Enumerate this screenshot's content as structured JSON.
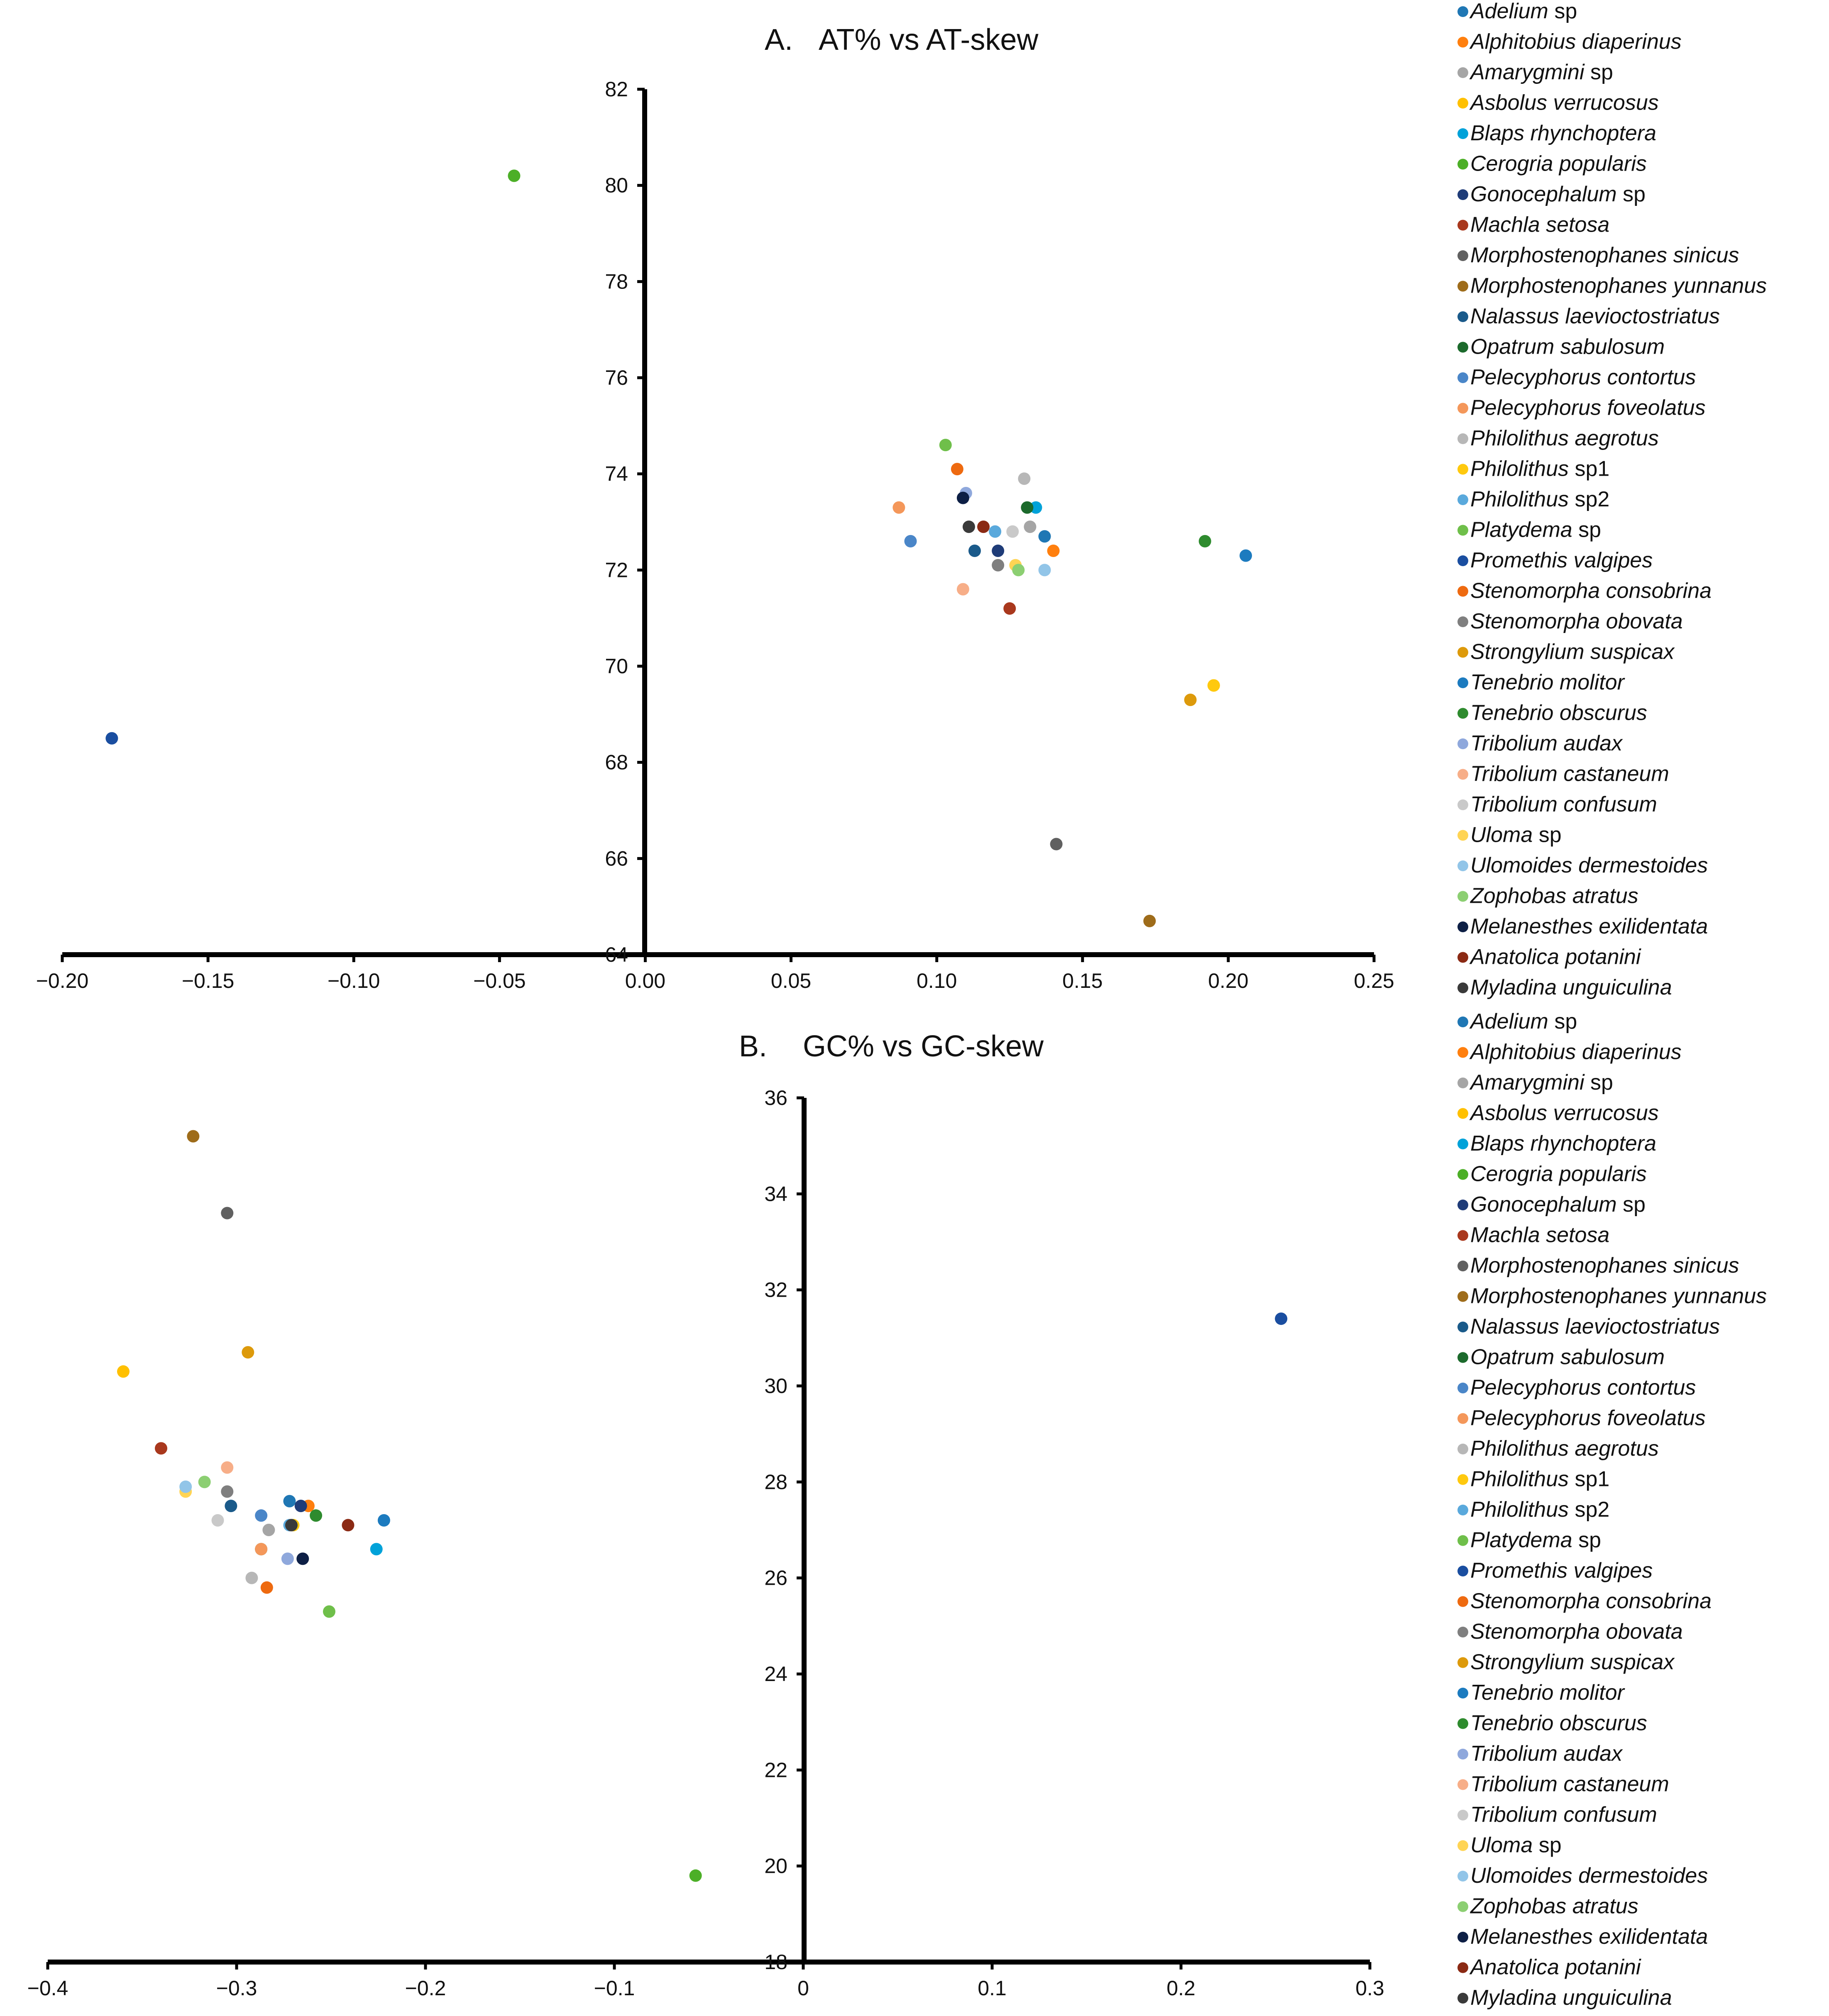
{
  "chart_data": [
    {
      "type": "scatter",
      "panel": "A.",
      "title": "AT% vs AT-skew",
      "xlabel": "",
      "ylabel": "",
      "xlim": [
        -0.2,
        0.25
      ],
      "ylim": [
        64,
        82
      ],
      "grid": false,
      "legend_position": "right",
      "x_ticks": [
        "−0.20",
        "−0.15",
        "−0.10",
        "−0.05",
        "0.00",
        "0.05",
        "0.10",
        "0.15",
        "0.20",
        "0.25"
      ],
      "y_ticks": [
        "64",
        "66",
        "68",
        "70",
        "72",
        "74",
        "76",
        "78",
        "80",
        "82"
      ],
      "series": [
        {
          "name": "Adelium",
          "qualifier": "sp",
          "color": "#1f77b4",
          "x": 0.137,
          "y": 72.7
        },
        {
          "name": "Alphitobius diaperinus",
          "qualifier": "",
          "color": "#ff7f0e",
          "x": 0.14,
          "y": 72.4
        },
        {
          "name": "Amarygmini",
          "qualifier": "sp",
          "color": "#a5a5a5",
          "x": 0.132,
          "y": 72.9
        },
        {
          "name": "Asbolus verrucosus",
          "qualifier": "",
          "color": "#ffc000",
          "x": 0.195,
          "y": 69.6
        },
        {
          "name": "Blaps rhynchoptera",
          "qualifier": "",
          "color": "#00a2d9",
          "x": 0.134,
          "y": 73.3
        },
        {
          "name": "Cerogria popularis",
          "qualifier": "",
          "color": "#4caf27",
          "x": -0.045,
          "y": 80.2
        },
        {
          "name": "Gonocephalum",
          "qualifier": "sp",
          "color": "#1f3c78",
          "x": 0.121,
          "y": 72.4
        },
        {
          "name": "Machla setosa",
          "qualifier": "",
          "color": "#a9381d",
          "x": 0.125,
          "y": 71.2
        },
        {
          "name": "Morphostenophanes sinicus",
          "qualifier": "",
          "color": "#606060",
          "x": 0.141,
          "y": 66.3
        },
        {
          "name": "Morphostenophanes yunnanus",
          "qualifier": "",
          "color": "#9e6c1a",
          "x": 0.173,
          "y": 64.7
        },
        {
          "name": "Nalassus laevioctostriatus",
          "qualifier": "",
          "color": "#1a5a8a",
          "x": 0.113,
          "y": 72.4
        },
        {
          "name": "Opatrum sabulosum",
          "qualifier": "",
          "color": "#1c6a2c",
          "x": 0.131,
          "y": 73.3
        },
        {
          "name": "Pelecyphorus contortus",
          "qualifier": "",
          "color": "#4a86c8",
          "x": 0.091,
          "y": 72.6
        },
        {
          "name": "Pelecyphorus foveolatus",
          "qualifier": "",
          "color": "#f4975a",
          "x": 0.087,
          "y": 73.3
        },
        {
          "name": "Philolithus aegrotus",
          "qualifier": "",
          "color": "#b7b7b7",
          "x": 0.13,
          "y": 73.9
        },
        {
          "name": "Philolithus",
          "qualifier": "sp1",
          "color": "#ffc90e",
          "x": 0.195,
          "y": 69.6
        },
        {
          "name": "Philolithus",
          "qualifier": "sp2",
          "color": "#5aa9dc",
          "x": 0.12,
          "y": 72.8
        },
        {
          "name": "Platydema",
          "qualifier": "sp",
          "color": "#6fbf4a",
          "x": 0.103,
          "y": 74.6
        },
        {
          "name": "Promethis valgipes",
          "qualifier": "",
          "color": "#1a4ea0",
          "x": -0.183,
          "y": 68.5
        },
        {
          "name": "Stenomorpha consobrina",
          "qualifier": "",
          "color": "#ee6a10",
          "x": 0.107,
          "y": 74.1
        },
        {
          "name": "Stenomorpha obovata",
          "qualifier": "",
          "color": "#7f7f7f",
          "x": 0.121,
          "y": 72.1
        },
        {
          "name": "Strongylium suspicax",
          "qualifier": "",
          "color": "#dd9a0b",
          "x": 0.187,
          "y": 69.3
        },
        {
          "name": "Tenebrio molitor",
          "qualifier": "",
          "color": "#1c7bbf",
          "x": 0.206,
          "y": 72.3
        },
        {
          "name": "Tenebrio obscurus",
          "qualifier": "",
          "color": "#2e8b2e",
          "x": 0.192,
          "y": 72.6
        },
        {
          "name": "Tribolium audax",
          "qualifier": "",
          "color": "#8fa8dc",
          "x": 0.11,
          "y": 73.6
        },
        {
          "name": "Tribolium castaneum",
          "qualifier": "",
          "color": "#f7ae88",
          "x": 0.109,
          "y": 71.6
        },
        {
          "name": "Tribolium confusum",
          "qualifier": "",
          "color": "#c9c9c9",
          "x": 0.126,
          "y": 72.8
        },
        {
          "name": "Uloma",
          "qualifier": "sp",
          "color": "#ffd454",
          "x": 0.127,
          "y": 72.1
        },
        {
          "name": "Ulomoides dermestoides",
          "qualifier": "",
          "color": "#92c5e8",
          "x": 0.137,
          "y": 72.0
        },
        {
          "name": "Zophobas atratus",
          "qualifier": "",
          "color": "#8ccf72",
          "x": 0.128,
          "y": 72.0
        },
        {
          "name": "Melanesthes exilidentata",
          "qualifier": "",
          "color": "#0d1f45",
          "x": 0.109,
          "y": 73.5
        },
        {
          "name": "Anatolica potanini",
          "qualifier": "",
          "color": "#8b2a14",
          "x": 0.116,
          "y": 72.9
        },
        {
          "name": "Myladina unguiculina",
          "qualifier": "",
          "color": "#3a3a3a",
          "x": 0.111,
          "y": 72.9
        }
      ]
    },
    {
      "type": "scatter",
      "panel": "B.",
      "title": "GC% vs GC-skew",
      "xlabel": "",
      "ylabel": "",
      "xlim": [
        -0.4,
        0.3
      ],
      "ylim": [
        18,
        36
      ],
      "grid": false,
      "legend_position": "right",
      "x_ticks": [
        "−0.4",
        "−0.3",
        "−0.2",
        "−0.1",
        "0",
        "0.1",
        "0.2",
        "0.3"
      ],
      "y_ticks": [
        "18",
        "20",
        "22",
        "24",
        "26",
        "28",
        "30",
        "32",
        "34",
        "36"
      ],
      "series": [
        {
          "name": "Adelium",
          "qualifier": "sp",
          "color": "#1f77b4",
          "x": -0.272,
          "y": 27.6
        },
        {
          "name": "Alphitobius diaperinus",
          "qualifier": "",
          "color": "#ff7f0e",
          "x": -0.262,
          "y": 27.5
        },
        {
          "name": "Amarygmini",
          "qualifier": "sp",
          "color": "#a5a5a5",
          "x": -0.283,
          "y": 27.0
        },
        {
          "name": "Asbolus verrucosus",
          "qualifier": "",
          "color": "#ffc000",
          "x": -0.36,
          "y": 30.3
        },
        {
          "name": "Blaps rhynchoptera",
          "qualifier": "",
          "color": "#00a2d9",
          "x": -0.226,
          "y": 26.6
        },
        {
          "name": "Cerogria popularis",
          "qualifier": "",
          "color": "#4caf27",
          "x": -0.057,
          "y": 19.8
        },
        {
          "name": "Gonocephalum",
          "qualifier": "sp",
          "color": "#1f3c78",
          "x": -0.266,
          "y": 27.5
        },
        {
          "name": "Machla setosa",
          "qualifier": "",
          "color": "#a9381d",
          "x": -0.34,
          "y": 28.7
        },
        {
          "name": "Morphostenophanes sinicus",
          "qualifier": "",
          "color": "#606060",
          "x": -0.305,
          "y": 33.6
        },
        {
          "name": "Morphostenophanes yunnanus",
          "qualifier": "",
          "color": "#9e6c1a",
          "x": -0.323,
          "y": 35.2
        },
        {
          "name": "Nalassus laevioctostriatus",
          "qualifier": "",
          "color": "#1a5a8a",
          "x": -0.303,
          "y": 27.5
        },
        {
          "name": "Opatrum sabulosum",
          "qualifier": "",
          "color": "#1c6a2c",
          "x": -0.287,
          "y": 26.6
        },
        {
          "name": "Pelecyphorus contortus",
          "qualifier": "",
          "color": "#4a86c8",
          "x": -0.287,
          "y": 27.3
        },
        {
          "name": "Pelecyphorus foveolatus",
          "qualifier": "",
          "color": "#f4975a",
          "x": -0.287,
          "y": 26.6
        },
        {
          "name": "Philolithus aegrotus",
          "qualifier": "",
          "color": "#b7b7b7",
          "x": -0.292,
          "y": 26.0
        },
        {
          "name": "Philolithus",
          "qualifier": "sp1",
          "color": "#ffc90e",
          "x": -0.27,
          "y": 27.1
        },
        {
          "name": "Philolithus",
          "qualifier": "sp2",
          "color": "#5aa9dc",
          "x": -0.272,
          "y": 27.1
        },
        {
          "name": "Platydema",
          "qualifier": "sp",
          "color": "#6fbf4a",
          "x": -0.251,
          "y": 25.3
        },
        {
          "name": "Promethis valgipes",
          "qualifier": "",
          "color": "#1a4ea0",
          "x": 0.253,
          "y": 31.4
        },
        {
          "name": "Stenomorpha consobrina",
          "qualifier": "",
          "color": "#ee6a10",
          "x": -0.284,
          "y": 25.8
        },
        {
          "name": "Stenomorpha obovata",
          "qualifier": "",
          "color": "#7f7f7f",
          "x": -0.305,
          "y": 27.8
        },
        {
          "name": "Strongylium suspicax",
          "qualifier": "",
          "color": "#dd9a0b",
          "x": -0.294,
          "y": 30.7
        },
        {
          "name": "Tenebrio molitor",
          "qualifier": "",
          "color": "#1c7bbf",
          "x": -0.222,
          "y": 27.2
        },
        {
          "name": "Tenebrio obscurus",
          "qualifier": "",
          "color": "#2e8b2e",
          "x": -0.258,
          "y": 27.3
        },
        {
          "name": "Tribolium audax",
          "qualifier": "",
          "color": "#8fa8dc",
          "x": -0.273,
          "y": 26.4
        },
        {
          "name": "Tribolium castaneum",
          "qualifier": "",
          "color": "#f7ae88",
          "x": -0.305,
          "y": 28.3
        },
        {
          "name": "Tribolium confusum",
          "qualifier": "",
          "color": "#c9c9c9",
          "x": -0.31,
          "y": 27.2
        },
        {
          "name": "Uloma",
          "qualifier": "sp",
          "color": "#ffd454",
          "x": -0.327,
          "y": 27.8
        },
        {
          "name": "Ulomoides dermestoides",
          "qualifier": "",
          "color": "#92c5e8",
          "x": -0.327,
          "y": 27.9
        },
        {
          "name": "Zophobas atratus",
          "qualifier": "",
          "color": "#8ccf72",
          "x": -0.317,
          "y": 28.0
        },
        {
          "name": "Melanesthes exilidentata",
          "qualifier": "",
          "color": "#0d1f45",
          "x": -0.265,
          "y": 26.4
        },
        {
          "name": "Anatolica potanini",
          "qualifier": "",
          "color": "#8b2a14",
          "x": -0.241,
          "y": 27.1
        },
        {
          "name": "Myladina unguiculina",
          "qualifier": "",
          "color": "#3a3a3a",
          "x": -0.271,
          "y": 27.1
        }
      ]
    }
  ]
}
